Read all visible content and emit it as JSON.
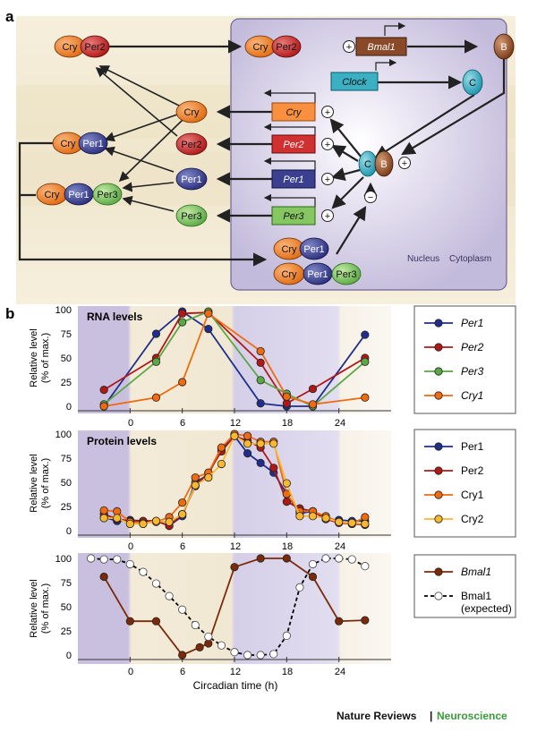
{
  "panel_a": {
    "label": "a",
    "nucleus_label": "Nucleus",
    "cytoplasm_label": "Cytoplasm",
    "genes": [
      "Bmal1",
      "Clock",
      "Cry",
      "Per2",
      "Per1",
      "Per3"
    ],
    "proteins": {
      "cry": "Cry",
      "per1": "Per1",
      "per2": "Per2",
      "per3": "Per3",
      "b": "B",
      "c": "C"
    },
    "signs": {
      "plus": "+",
      "minus": "−"
    }
  },
  "panel_b": {
    "label": "b",
    "x_label": "Circadian time (h)",
    "y_label_line1": "Relative level",
    "y_label_line2": "(% of max.)",
    "x_ticks": [
      "0",
      "6",
      "12",
      "18",
      "24"
    ],
    "y_ticks": [
      "0",
      "25",
      "50",
      "75",
      "100"
    ]
  },
  "chart_data": [
    {
      "type": "line",
      "title": "RNA levels",
      "xlabel": "",
      "ylabel": "Relative level (% of max.)",
      "xlim": [
        -6,
        30
      ],
      "ylim": [
        0,
        100
      ],
      "series": [
        {
          "name": "Per1",
          "color": "#1f2e8a",
          "x": [
            -3,
            3,
            6,
            9,
            15,
            18,
            21,
            27
          ],
          "y": [
            0,
            75,
            98,
            80,
            3,
            0,
            0,
            74
          ]
        },
        {
          "name": "Per2",
          "color": "#b01818",
          "x": [
            -3,
            3,
            6,
            9,
            15,
            18,
            21,
            27
          ],
          "y": [
            17,
            50,
            96,
            97,
            45,
            3,
            18,
            50
          ]
        },
        {
          "name": "Per3",
          "color": "#5aa845",
          "x": [
            -3,
            3,
            6,
            9,
            15,
            18,
            21,
            27
          ],
          "y": [
            2,
            46,
            87,
            98,
            27,
            13,
            0,
            46
          ]
        },
        {
          "name": "Cry1",
          "color": "#f06a10",
          "x": [
            -3,
            3,
            6,
            9,
            15,
            18,
            21,
            27
          ],
          "y": [
            0,
            9,
            25,
            96,
            57,
            10,
            2,
            9
          ]
        }
      ]
    },
    {
      "type": "line",
      "title": "Protein levels",
      "xlabel": "",
      "ylabel": "Relative level (% of max.)",
      "xlim": [
        -6,
        30
      ],
      "ylim": [
        0,
        100
      ],
      "series": [
        {
          "name": "Per1",
          "color": "#1f2e8a",
          "x": [
            -3,
            -1.5,
            0,
            1.5,
            3,
            4.5,
            6,
            7.5,
            9,
            10.5,
            12,
            13.5,
            15,
            16.5,
            18,
            19.5,
            21,
            22.5,
            24,
            25.5,
            27
          ],
          "y": [
            14,
            10,
            11,
            10,
            10,
            5,
            15,
            50,
            58,
            85,
            98,
            80,
            70,
            60,
            38,
            18,
            20,
            12,
            11,
            10,
            10
          ]
        },
        {
          "name": "Per2",
          "color": "#b01818",
          "x": [
            -3,
            -1.5,
            0,
            1.5,
            3,
            4.5,
            6,
            7.5,
            9,
            10.5,
            12,
            13.5,
            15,
            16.5,
            18,
            19.5,
            21,
            22.5,
            24,
            25.5,
            27
          ],
          "y": [
            17,
            12,
            10,
            10,
            10,
            5,
            17,
            46,
            60,
            82,
            98,
            93,
            86,
            65,
            30,
            23,
            20,
            12,
            8,
            7,
            6
          ]
        },
        {
          "name": "Cry1",
          "color": "#f06a10",
          "x": [
            -3,
            -1.5,
            0,
            1.5,
            3,
            4.5,
            6,
            7.5,
            9,
            10.5,
            12,
            13.5,
            15,
            16.5,
            18,
            19.5,
            21,
            22.5,
            24,
            25.5,
            27
          ],
          "y": [
            21,
            20,
            9,
            8,
            9,
            14,
            29,
            55,
            60,
            86,
            100,
            98,
            92,
            92,
            38,
            20,
            20,
            15,
            9,
            7,
            14
          ]
        },
        {
          "name": "Cry2",
          "color": "#f8b830",
          "x": [
            -3,
            -1.5,
            0,
            1.5,
            3,
            4.5,
            6,
            7.5,
            9,
            10.5,
            12,
            13.5,
            15,
            16.5,
            18,
            19.5,
            21,
            22.5,
            24,
            25.5,
            27
          ],
          "y": [
            13,
            13,
            7,
            7,
            10,
            9,
            17,
            47,
            55,
            69,
            98,
            90,
            90,
            90,
            49,
            15,
            15,
            13,
            9,
            8,
            7
          ]
        }
      ]
    },
    {
      "type": "line",
      "title": "",
      "xlabel": "Circadian time (h)",
      "ylabel": "Relative level (% of max.)",
      "xlim": [
        -6,
        30
      ],
      "ylim": [
        0,
        100
      ],
      "series": [
        {
          "name": "Bmal1",
          "color": "#7a2a08",
          "dashed": false,
          "open": false,
          "x": [
            -3,
            0,
            3,
            6,
            8,
            9,
            12,
            15,
            18,
            21,
            24,
            27
          ],
          "y": [
            81,
            35,
            35,
            0,
            8,
            12,
            91,
            100,
            100,
            81,
            35,
            36
          ]
        },
        {
          "name": "Bmal1 (expected)",
          "color": "#000000",
          "dashed": true,
          "open": true,
          "x": [
            -4.5,
            -3,
            -1.5,
            0,
            1.5,
            3,
            4.5,
            6,
            7.5,
            9,
            10.5,
            12,
            13.5,
            15,
            16.5,
            18,
            19.5,
            21,
            22.5,
            24,
            25.5,
            27
          ],
          "y": [
            100,
            99,
            99,
            94,
            86,
            74,
            61,
            47,
            31,
            19,
            10,
            3,
            0,
            0,
            1,
            20,
            70,
            94,
            100,
            100,
            99,
            92
          ]
        }
      ]
    }
  ],
  "legends": [
    [
      {
        "label": "Per1",
        "italic": true
      },
      {
        "label": "Per2",
        "italic": true
      },
      {
        "label": "Per3",
        "italic": true
      },
      {
        "label": "Cry1",
        "italic": true
      }
    ],
    [
      {
        "label": "Per1",
        "italic": false
      },
      {
        "label": "Per2",
        "italic": false
      },
      {
        "label": "Cry1",
        "italic": false
      },
      {
        "label": "Cry2",
        "italic": false
      }
    ],
    [
      {
        "label": "Bmal1",
        "italic": true
      },
      {
        "label": "Bmal1",
        "sub": "(expected)",
        "italic": false
      }
    ]
  ],
  "footer": {
    "journal": "Nature Reviews",
    "separator": "|",
    "section": "Neuroscience"
  },
  "colors": {
    "nucleus": "#c8c0de",
    "cry": "#f07c1c",
    "per1": "#3b3f92",
    "per2": "#c41f1f",
    "per3": "#7cc155",
    "bmal1": "#8a4a2a",
    "clock": "#2aa3b8",
    "neuroscience": "#3a9a3a"
  }
}
